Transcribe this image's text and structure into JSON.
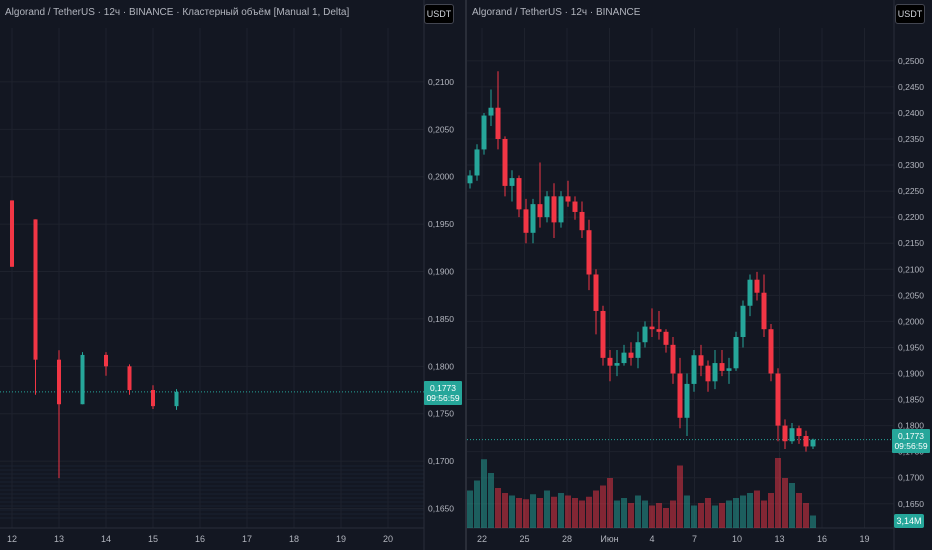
{
  "left_panel": {
    "title": "Algorand / TetherUS · 12ч · BINANCE · Кластерный объём [Manual 1, Delta]",
    "currency": "USDT",
    "price_label": "0,1773",
    "timer_label": "09:56:59",
    "y_axis": {
      "min": 0.164,
      "max": 0.214,
      "ticks": [
        "0,2100",
        "0,2050",
        "0,2000",
        "0,1950",
        "0,1900",
        "0,1850",
        "0,1800",
        "0,1750",
        "0,1700",
        "0,1650"
      ]
    },
    "x_axis": {
      "ticks": [
        "12",
        "13",
        "14",
        "15",
        "16",
        "17",
        "18",
        "19",
        "20"
      ]
    }
  },
  "right_panel": {
    "title": "Algorand / TetherUS · 12ч · BINANCE",
    "currency": "USDT",
    "price_label": "0,1773",
    "timer_label": "09:56:59",
    "volume_label": "3,14M",
    "y_axis": {
      "min": 0.1615,
      "max": 0.254,
      "ticks": [
        "0,2500",
        "0,2450",
        "0,2400",
        "0,2350",
        "0,2300",
        "0,2250",
        "0,2200",
        "0,2150",
        "0,2100",
        "0,2050",
        "0,2000",
        "0,1950",
        "0,1900",
        "0,1850",
        "0,1800",
        "0,1750",
        "0,1700",
        "0,1650"
      ]
    },
    "x_axis": {
      "ticks": [
        "22",
        "25",
        "28",
        "Июн",
        "4",
        "7",
        "10",
        "13",
        "16",
        "19"
      ]
    }
  },
  "colors": {
    "up": "#26a69a",
    "down": "#f23645",
    "background": "#131722",
    "grid": "#1e222d"
  },
  "chart_data": [
    {
      "type": "candlestick",
      "title": "Algorand / TetherUS · 12ч · BINANCE · Кластерный объём [Manual 1, Delta]",
      "categories": [
        "12",
        "12",
        "13",
        "13",
        "14",
        "14",
        "15",
        "15"
      ],
      "candles": [
        {
          "o": 0.1975,
          "h": 0.1975,
          "l": 0.1905,
          "c": 0.1905
        },
        {
          "o": 0.1955,
          "h": 0.1955,
          "l": 0.177,
          "c": 0.1807
        },
        {
          "o": 0.1807,
          "h": 0.1817,
          "l": 0.1682,
          "c": 0.176
        },
        {
          "o": 0.176,
          "h": 0.1815,
          "l": 0.176,
          "c": 0.1812
        },
        {
          "o": 0.1812,
          "h": 0.1815,
          "l": 0.179,
          "c": 0.18
        },
        {
          "o": 0.18,
          "h": 0.1802,
          "l": 0.177,
          "c": 0.1775
        },
        {
          "o": 0.1775,
          "h": 0.178,
          "l": 0.1755,
          "c": 0.1758
        },
        {
          "o": 0.1758,
          "h": 0.1776,
          "l": 0.1754,
          "c": 0.1773
        }
      ],
      "ylim": [
        0.164,
        0.214
      ]
    },
    {
      "type": "candlestick",
      "title": "Algorand / TetherUS · 12ч · BINANCE",
      "categories": [
        "22",
        "25",
        "28",
        "Июн",
        "4",
        "7",
        "10",
        "13",
        "16",
        "19"
      ],
      "candles": [
        {
          "o": 0.2265,
          "h": 0.229,
          "l": 0.2255,
          "c": 0.228
        },
        {
          "o": 0.228,
          "h": 0.234,
          "l": 0.227,
          "c": 0.233
        },
        {
          "o": 0.233,
          "h": 0.24,
          "l": 0.232,
          "c": 0.2395
        },
        {
          "o": 0.2395,
          "h": 0.2445,
          "l": 0.2375,
          "c": 0.241
        },
        {
          "o": 0.241,
          "h": 0.248,
          "l": 0.233,
          "c": 0.235
        },
        {
          "o": 0.235,
          "h": 0.2355,
          "l": 0.224,
          "c": 0.226
        },
        {
          "o": 0.226,
          "h": 0.229,
          "l": 0.223,
          "c": 0.2275
        },
        {
          "o": 0.2275,
          "h": 0.228,
          "l": 0.22,
          "c": 0.2215
        },
        {
          "o": 0.2215,
          "h": 0.2235,
          "l": 0.215,
          "c": 0.217
        },
        {
          "o": 0.217,
          "h": 0.2235,
          "l": 0.215,
          "c": 0.2225
        },
        {
          "o": 0.2225,
          "h": 0.2305,
          "l": 0.218,
          "c": 0.22
        },
        {
          "o": 0.22,
          "h": 0.225,
          "l": 0.219,
          "c": 0.224
        },
        {
          "o": 0.224,
          "h": 0.2265,
          "l": 0.216,
          "c": 0.219
        },
        {
          "o": 0.219,
          "h": 0.225,
          "l": 0.218,
          "c": 0.224
        },
        {
          "o": 0.224,
          "h": 0.227,
          "l": 0.222,
          "c": 0.223
        },
        {
          "o": 0.223,
          "h": 0.224,
          "l": 0.2195,
          "c": 0.221
        },
        {
          "o": 0.221,
          "h": 0.223,
          "l": 0.216,
          "c": 0.2175
        },
        {
          "o": 0.2175,
          "h": 0.2195,
          "l": 0.206,
          "c": 0.209
        },
        {
          "o": 0.209,
          "h": 0.21,
          "l": 0.1975,
          "c": 0.202
        },
        {
          "o": 0.202,
          "h": 0.203,
          "l": 0.1915,
          "c": 0.193
        },
        {
          "o": 0.193,
          "h": 0.1945,
          "l": 0.1885,
          "c": 0.1915
        },
        {
          "o": 0.1915,
          "h": 0.1945,
          "l": 0.1895,
          "c": 0.192
        },
        {
          "o": 0.192,
          "h": 0.1955,
          "l": 0.1915,
          "c": 0.194
        },
        {
          "o": 0.194,
          "h": 0.196,
          "l": 0.1915,
          "c": 0.193
        },
        {
          "o": 0.193,
          "h": 0.198,
          "l": 0.191,
          "c": 0.196
        },
        {
          "o": 0.196,
          "h": 0.2,
          "l": 0.195,
          "c": 0.199
        },
        {
          "o": 0.199,
          "h": 0.2025,
          "l": 0.197,
          "c": 0.1985
        },
        {
          "o": 0.1985,
          "h": 0.202,
          "l": 0.1965,
          "c": 0.198
        },
        {
          "o": 0.198,
          "h": 0.1985,
          "l": 0.194,
          "c": 0.1955
        },
        {
          "o": 0.1955,
          "h": 0.197,
          "l": 0.188,
          "c": 0.19
        },
        {
          "o": 0.19,
          "h": 0.193,
          "l": 0.1795,
          "c": 0.1815
        },
        {
          "o": 0.1815,
          "h": 0.19,
          "l": 0.178,
          "c": 0.188
        },
        {
          "o": 0.188,
          "h": 0.1945,
          "l": 0.1865,
          "c": 0.1935
        },
        {
          "o": 0.1935,
          "h": 0.1955,
          "l": 0.1895,
          "c": 0.1915
        },
        {
          "o": 0.1915,
          "h": 0.1925,
          "l": 0.1865,
          "c": 0.1885
        },
        {
          "o": 0.1885,
          "h": 0.1945,
          "l": 0.187,
          "c": 0.192
        },
        {
          "o": 0.192,
          "h": 0.1945,
          "l": 0.1895,
          "c": 0.1905
        },
        {
          "o": 0.1905,
          "h": 0.193,
          "l": 0.188,
          "c": 0.191
        },
        {
          "o": 0.191,
          "h": 0.198,
          "l": 0.1905,
          "c": 0.197
        },
        {
          "o": 0.197,
          "h": 0.204,
          "l": 0.195,
          "c": 0.203
        },
        {
          "o": 0.203,
          "h": 0.209,
          "l": 0.201,
          "c": 0.208
        },
        {
          "o": 0.208,
          "h": 0.2095,
          "l": 0.204,
          "c": 0.2055
        },
        {
          "o": 0.2055,
          "h": 0.209,
          "l": 0.197,
          "c": 0.1985
        },
        {
          "o": 0.1985,
          "h": 0.1995,
          "l": 0.1885,
          "c": 0.19
        },
        {
          "o": 0.19,
          "h": 0.191,
          "l": 0.177,
          "c": 0.18
        },
        {
          "o": 0.18,
          "h": 0.1812,
          "l": 0.1755,
          "c": 0.177
        },
        {
          "o": 0.177,
          "h": 0.1805,
          "l": 0.1765,
          "c": 0.1795
        },
        {
          "o": 0.1795,
          "h": 0.18,
          "l": 0.1765,
          "c": 0.178
        },
        {
          "o": 0.178,
          "h": 0.179,
          "l": 0.175,
          "c": 0.176
        },
        {
          "o": 0.176,
          "h": 0.1775,
          "l": 0.1755,
          "c": 0.1773
        }
      ],
      "volumes": [
        30,
        38,
        55,
        44,
        32,
        28,
        26,
        24,
        23,
        27,
        24,
        30,
        25,
        28,
        26,
        24,
        22,
        25,
        30,
        34,
        40,
        22,
        24,
        20,
        26,
        22,
        18,
        20,
        16,
        22,
        50,
        26,
        18,
        20,
        24,
        18,
        20,
        22,
        24,
        26,
        28,
        30,
        22,
        28,
        56,
        40,
        36,
        28,
        20,
        10
      ],
      "ylim": [
        0.1615,
        0.254
      ]
    }
  ]
}
